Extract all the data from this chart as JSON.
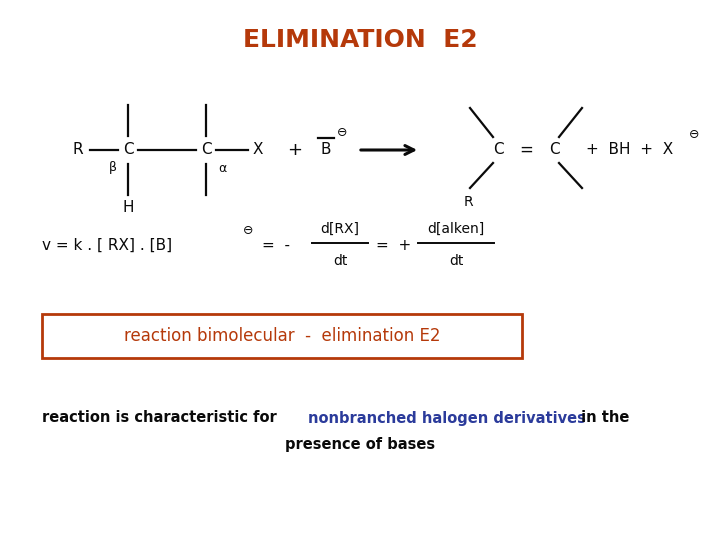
{
  "title": "ELIMINATION  E2",
  "title_color": "#B5390A",
  "title_fontsize": 18,
  "box_text": "reaction bimolecular  -  elimination E2",
  "box_text_color": "#B5390A",
  "box_border_color": "#B5390A",
  "bottom_text_prefix": "reaction is characteristic for ",
  "bottom_text_highlight": "nonbranched halogen derivatives",
  "bottom_text_suffix": " in the",
  "bottom_text_line2": "presence of bases",
  "bottom_text_color": "#0a0a0a",
  "bottom_highlight_color": "#2B3B9B",
  "background_color": "#ffffff"
}
